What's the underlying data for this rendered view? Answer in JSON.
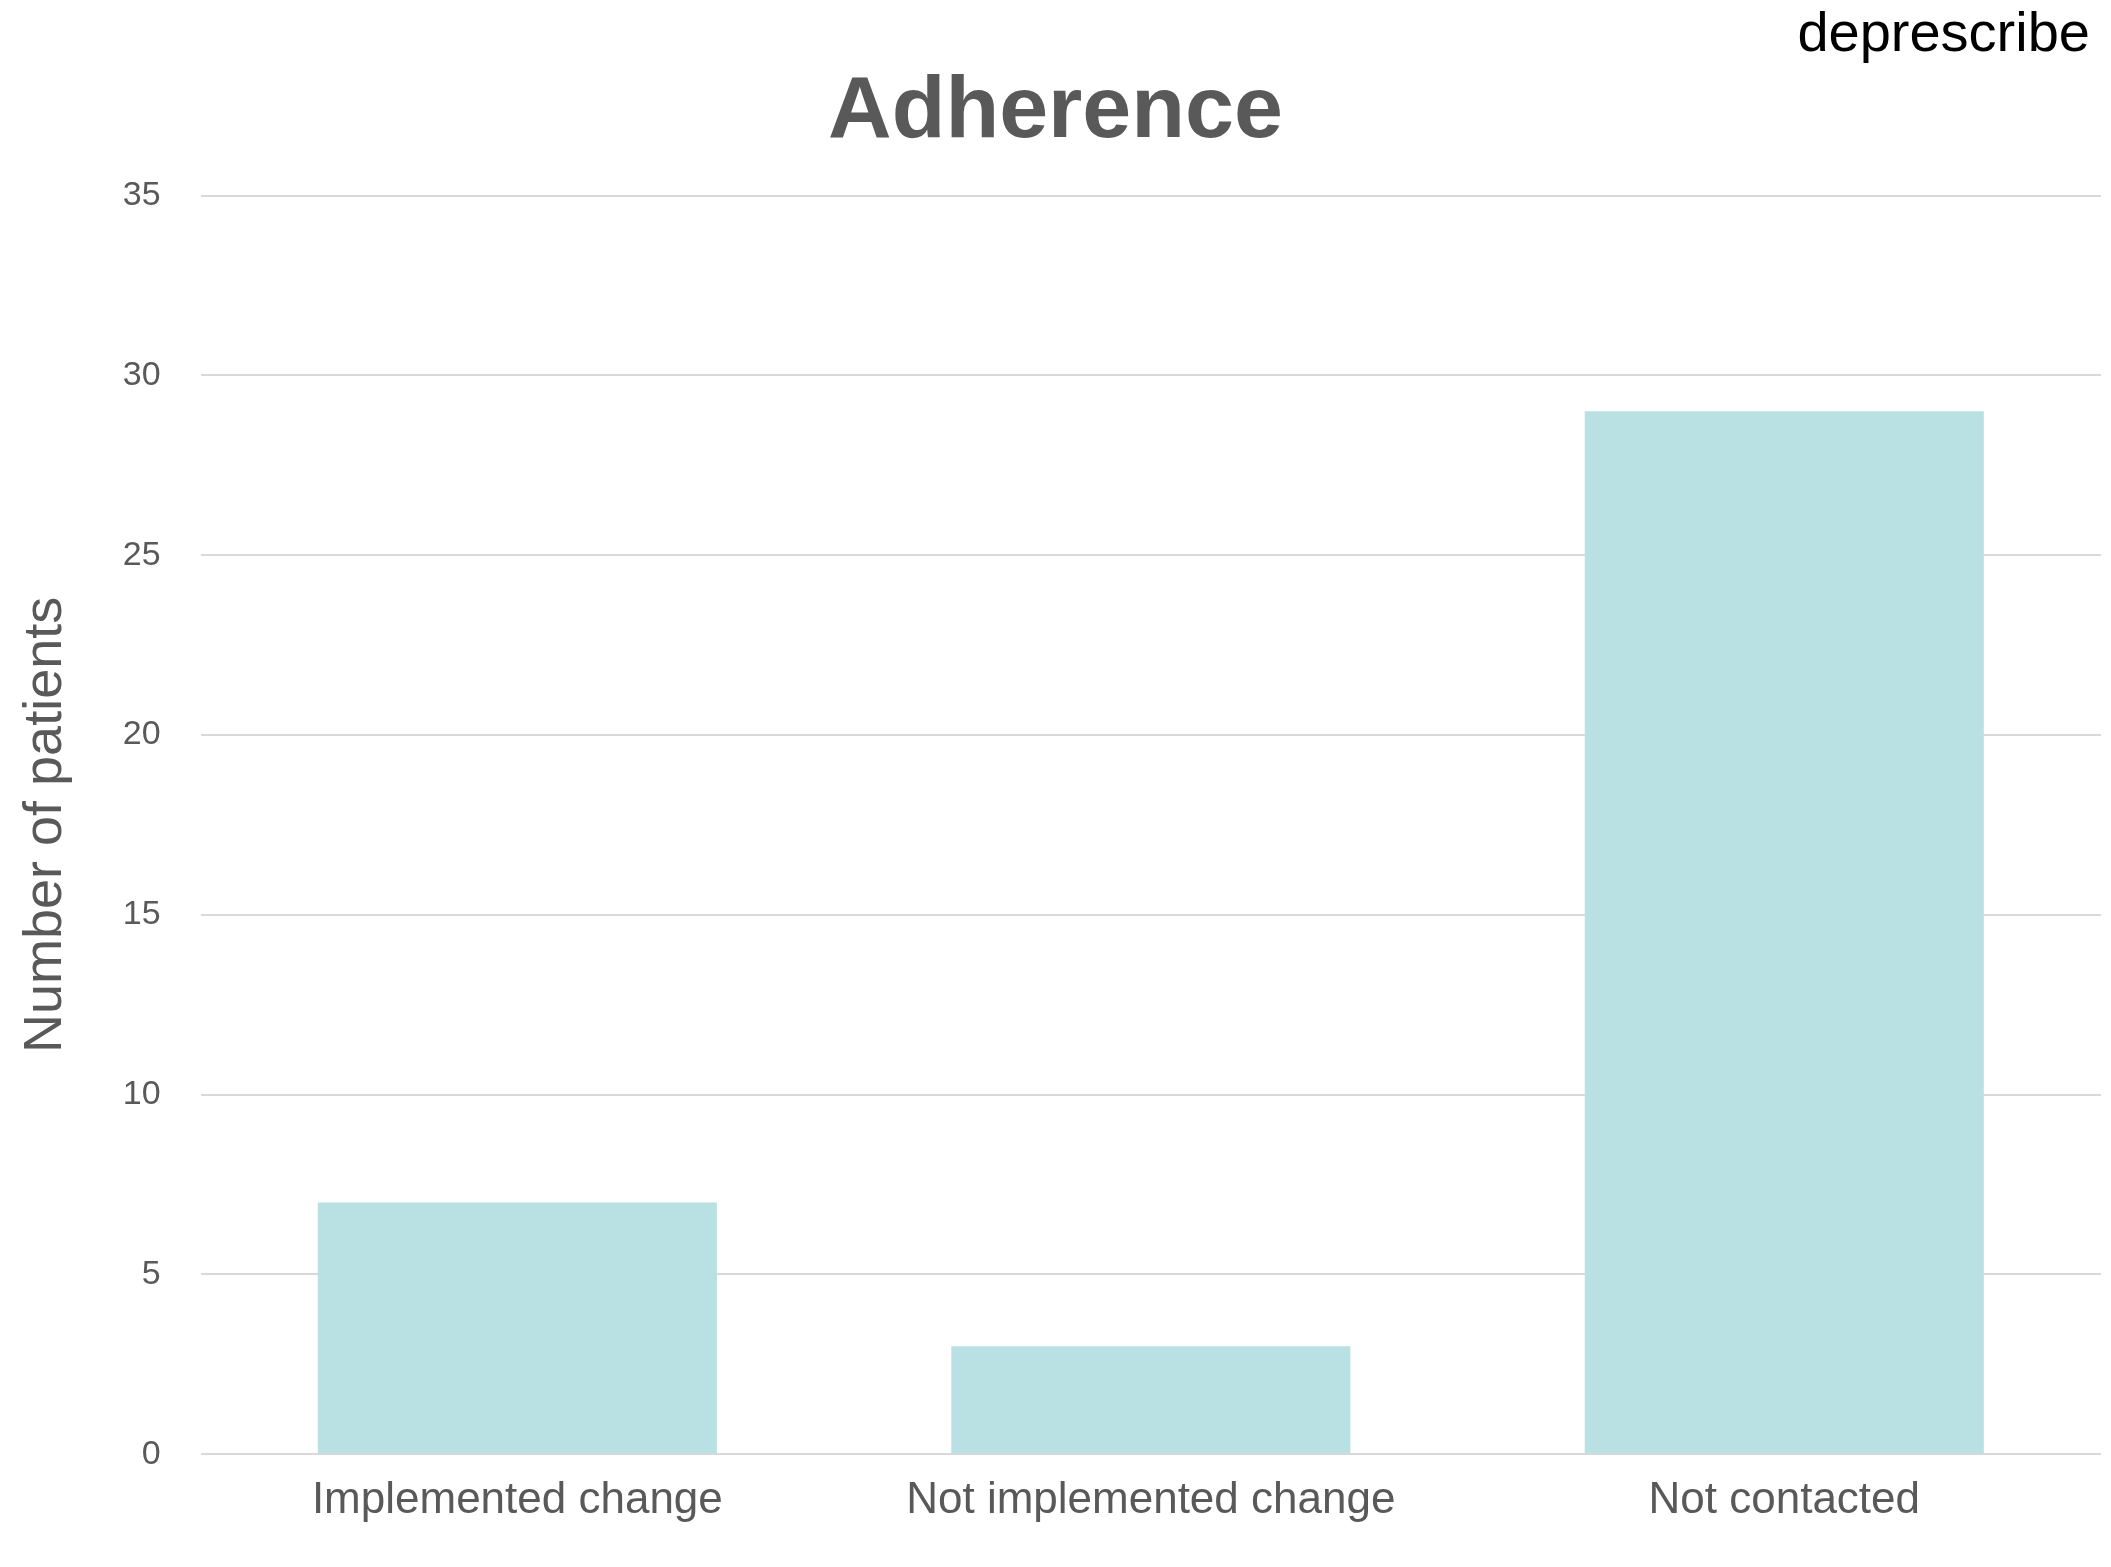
{
  "chart_data": {
    "type": "bar",
    "title": "Adherence",
    "ylabel": "Number of patients",
    "categories": [
      "Implemented change",
      "Not implemented change",
      "Not contacted"
    ],
    "values": [
      7,
      3,
      29
    ],
    "color": "#b9e0e2",
    "ylim": [
      0,
      35
    ],
    "yticks": [
      0,
      5,
      10,
      15,
      20,
      25,
      30,
      35
    ],
    "grid": "y",
    "legend": false,
    "annotations": [
      "deprescribe"
    ]
  }
}
